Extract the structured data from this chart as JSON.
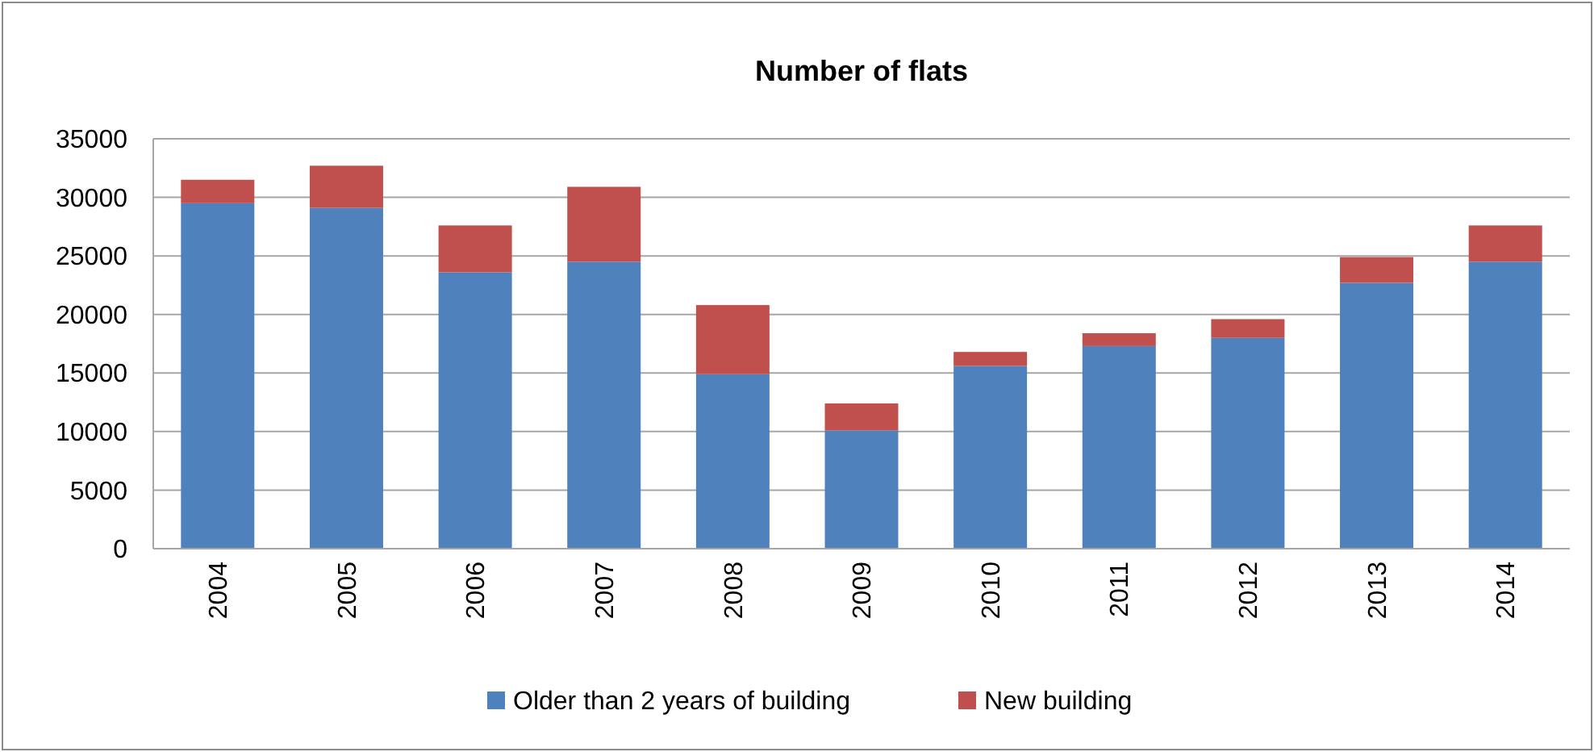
{
  "chart_data": {
    "type": "bar",
    "title": "Number of flats",
    "stacked": true,
    "categories": [
      "2004",
      "2005",
      "2006",
      "2007",
      "2008",
      "2009",
      "2010",
      "2011",
      "2012",
      "2013",
      "2014"
    ],
    "series": [
      {
        "name": "Older than 2 years of building",
        "color": "#4f81bd",
        "values": [
          29500,
          29100,
          23600,
          24500,
          14900,
          10100,
          15600,
          17300,
          18000,
          22700,
          24500
        ]
      },
      {
        "name": "New building",
        "color": "#c0504d",
        "values": [
          2000,
          3600,
          4000,
          6400,
          5900,
          2300,
          1200,
          1100,
          1600,
          2200,
          3100
        ]
      }
    ],
    "ylim": [
      0,
      35000
    ],
    "yticks": [
      0,
      5000,
      10000,
      15000,
      20000,
      25000,
      30000,
      35000
    ],
    "grid": "y",
    "legend": "bottom"
  }
}
